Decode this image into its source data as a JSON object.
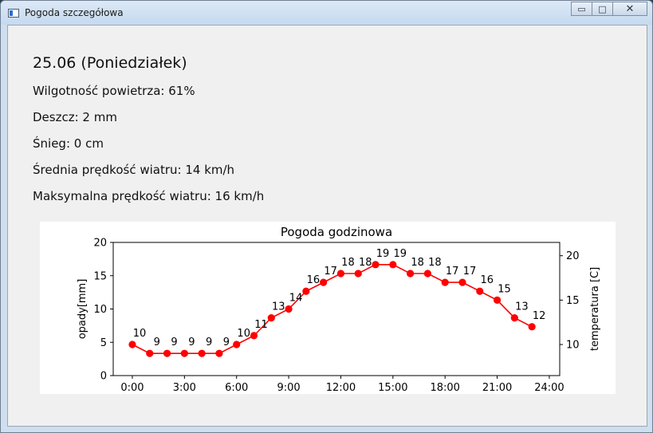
{
  "window": {
    "title": "Pogoda szczegółowa"
  },
  "caption_buttons": {
    "minimize": "▭",
    "maximize": "□",
    "close": "✕"
  },
  "info": {
    "date": "25.06 (Poniedziałek)",
    "humidity": "Wilgotność powietrza: 61%",
    "rain": "Deszcz: 2 mm",
    "snow": "Śnieg: 0 cm",
    "avg_wind": "Średnia prędkość wiatru: 14 km/h",
    "max_wind": "Maksymalna prędkość wiatru: 16 km/h"
  },
  "chart_data": {
    "type": "line",
    "title": "Pogoda godzinowa",
    "xlabel": "",
    "ylabel_left": "opady[mm]",
    "ylabel_right": "temperatura [C]",
    "x_ticks": [
      "0:00",
      "3:00",
      "6:00",
      "9:00",
      "12:00",
      "15:00",
      "18:00",
      "21:00",
      "24:00"
    ],
    "x_range_hours": [
      -1.1,
      24.6
    ],
    "left_ylim": [
      0,
      20
    ],
    "left_ticks": [
      0,
      5,
      10,
      15,
      20
    ],
    "right_ylim": [
      6.5,
      21.5
    ],
    "right_ticks": [
      10,
      15,
      20
    ],
    "grid": false,
    "legend": "none",
    "series": [
      {
        "axis": "right",
        "color": "#ff0000",
        "hours": [
          0,
          1,
          2,
          3,
          4,
          5,
          6,
          7,
          8,
          9,
          10,
          11,
          12,
          13,
          14,
          15,
          16,
          17,
          18,
          19,
          20,
          21,
          22,
          23
        ],
        "values": [
          10,
          9,
          9,
          9,
          9,
          9,
          10,
          11,
          13,
          14,
          16,
          17,
          18,
          18,
          19,
          19,
          18,
          18,
          17,
          17,
          16,
          15,
          13,
          12
        ],
        "labels": [
          "10",
          "9",
          "9",
          "9",
          "9",
          "9",
          "10",
          "11",
          "13",
          "14",
          "16",
          "17",
          "18",
          "18",
          "19",
          "19",
          "18",
          "18",
          "17",
          "17",
          "16",
          "15",
          "13",
          "12"
        ]
      }
    ]
  }
}
